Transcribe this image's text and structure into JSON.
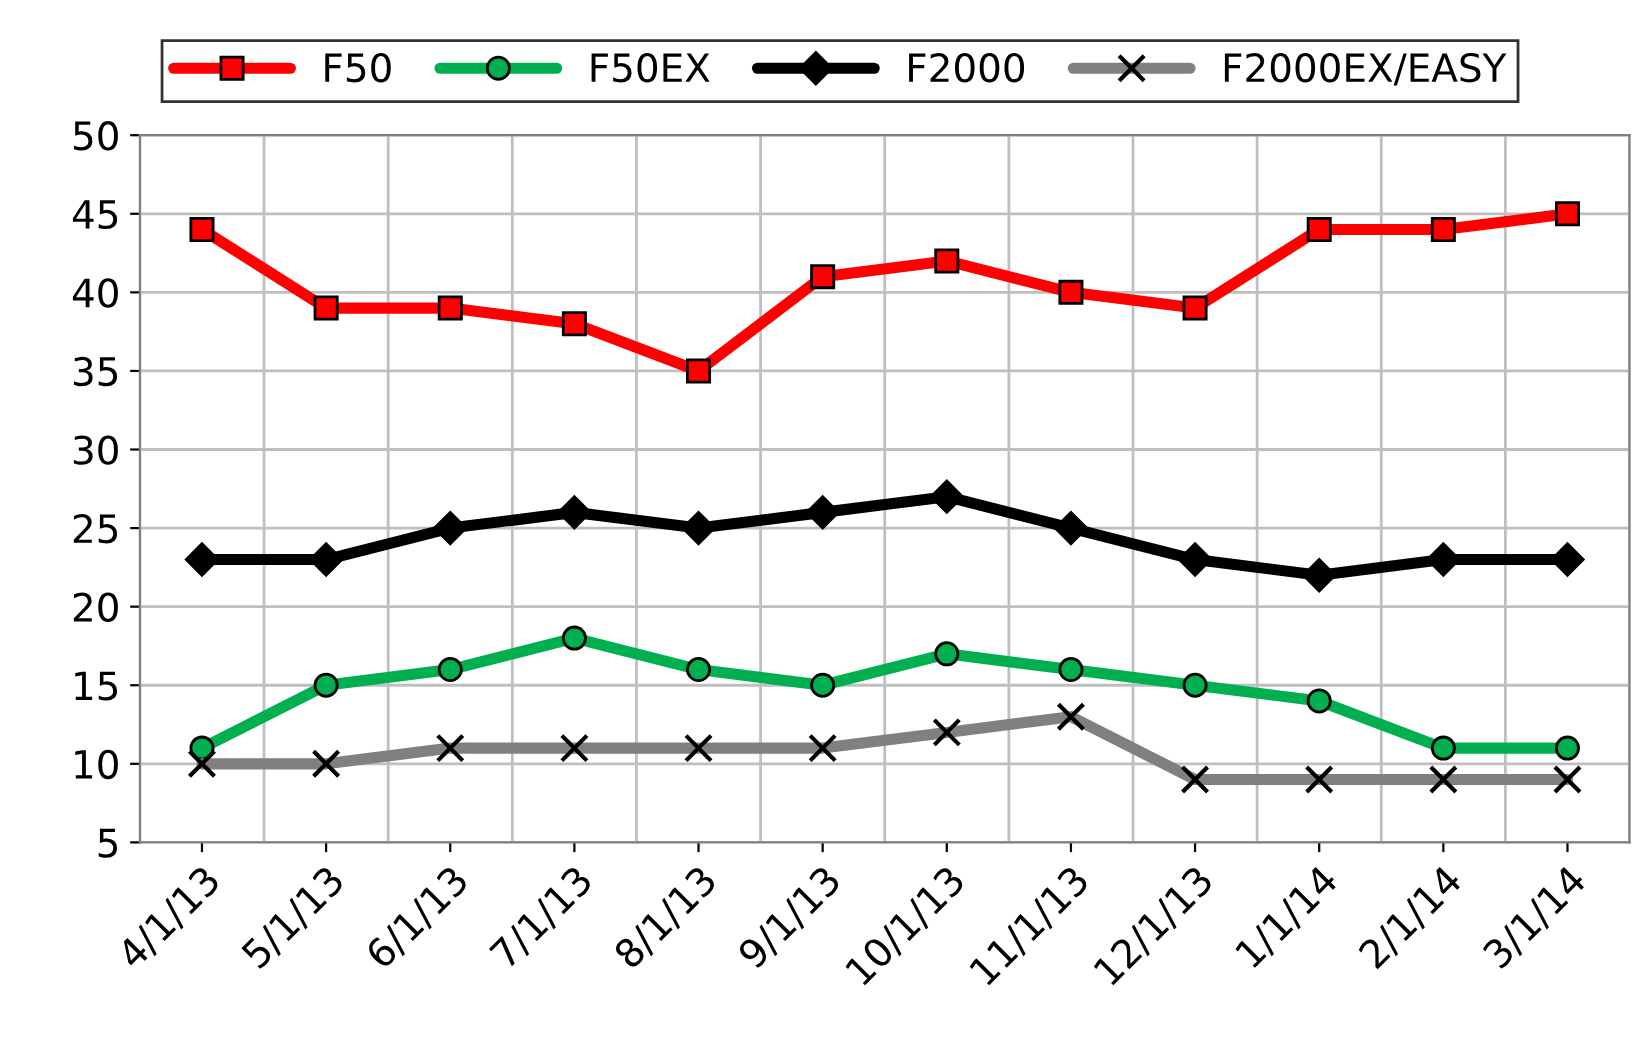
{
  "chart_data": {
    "type": "line",
    "categories": [
      "4/1/13",
      "5/1/13",
      "6/1/13",
      "7/1/13",
      "8/1/13",
      "9/1/13",
      "10/1/13",
      "11/1/13",
      "12/1/13",
      "1/1/14",
      "2/1/14",
      "3/1/14"
    ],
    "series": [
      {
        "name": "F50",
        "color": "#ff0000",
        "marker": "square",
        "values": [
          44,
          39,
          39,
          38,
          35,
          41,
          42,
          40,
          39,
          44,
          44,
          45
        ]
      },
      {
        "name": "F50EX",
        "color": "#00b050",
        "marker": "circle",
        "values": [
          11,
          15,
          16,
          18,
          16,
          15,
          17,
          16,
          15,
          14,
          11,
          11
        ]
      },
      {
        "name": "F2000",
        "color": "#000000",
        "marker": "diamond",
        "values": [
          23,
          23,
          25,
          26,
          25,
          26,
          27,
          25,
          23,
          22,
          23,
          23
        ]
      },
      {
        "name": "F2000EX/EASY",
        "color": "#808080",
        "marker": "cross",
        "values": [
          10,
          10,
          11,
          11,
          11,
          11,
          12,
          13,
          9,
          9,
          9,
          9
        ]
      }
    ],
    "ylim": [
      5,
      50
    ],
    "yticks": [
      5,
      10,
      15,
      20,
      25,
      30,
      35,
      40,
      45,
      50
    ],
    "grid": true,
    "legend": "top",
    "line_style": "solid"
  }
}
